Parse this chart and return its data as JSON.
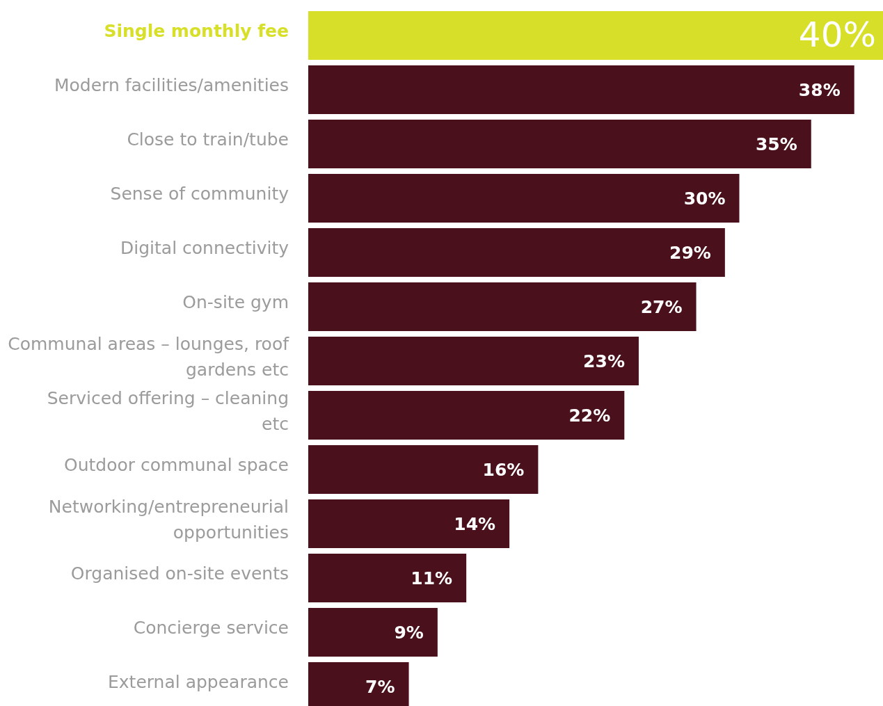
{
  "chart_data": {
    "type": "bar",
    "orientation": "horizontal",
    "categories": [
      "Single monthly fee",
      "Modern facilities/amenities",
      "Close to train/tube",
      "Sense of community",
      "Digital connectivity",
      "On-site gym",
      "Communal areas – lounges, roof gardens etc",
      "Serviced offering – cleaning etc",
      "Outdoor communal space",
      "Networking/entrepreneurial opportunities",
      "Organised on-site events",
      "Concierge service",
      "External appearance"
    ],
    "values": [
      40,
      38,
      35,
      30,
      29,
      27,
      23,
      22,
      16,
      14,
      11,
      9,
      7
    ],
    "colors": [
      "#d7df29",
      "#4a111c",
      "#4a111c",
      "#4a111c",
      "#4a111c",
      "#4a111c",
      "#4a111c",
      "#4a111c",
      "#4a111c",
      "#4a111c",
      "#4a111c",
      "#4a111c",
      "#4a111c"
    ],
    "value_labels": [
      "40%",
      "38%",
      "35%",
      "30%",
      "29%",
      "27%",
      "23%",
      "22%",
      "16%",
      "14%",
      "11%",
      "9%",
      "7%"
    ]
  }
}
